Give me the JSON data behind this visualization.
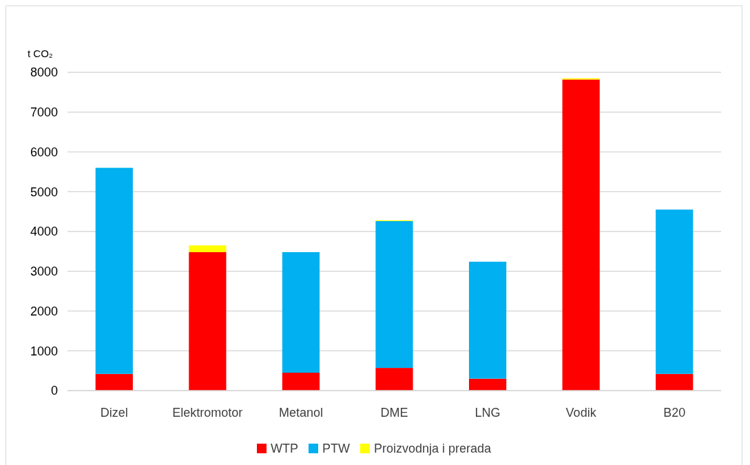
{
  "chart_data": {
    "type": "bar",
    "stacked": true,
    "ylabel": "t CO₂",
    "categories": [
      "Dizel",
      "Elektromotor",
      "Metanol",
      "DME",
      "LNG",
      "Vodik",
      "B20"
    ],
    "series": [
      {
        "name": "WTP",
        "color": "#ff0000",
        "values": [
          420,
          3480,
          450,
          570,
          300,
          7820,
          420
        ]
      },
      {
        "name": "PTW",
        "color": "#00b0f0",
        "values": [
          5180,
          0,
          3030,
          3690,
          2940,
          0,
          4130
        ]
      },
      {
        "name": "Proizvodnja i prerada",
        "color": "#ffff00",
        "values": [
          0,
          170,
          0,
          20,
          0,
          30,
          0
        ]
      }
    ],
    "ylim": [
      0,
      8000
    ],
    "yticks": [
      0,
      1000,
      2000,
      3000,
      4000,
      5000,
      6000,
      7000,
      8000
    ],
    "grid": "y",
    "legend": "bottom"
  }
}
